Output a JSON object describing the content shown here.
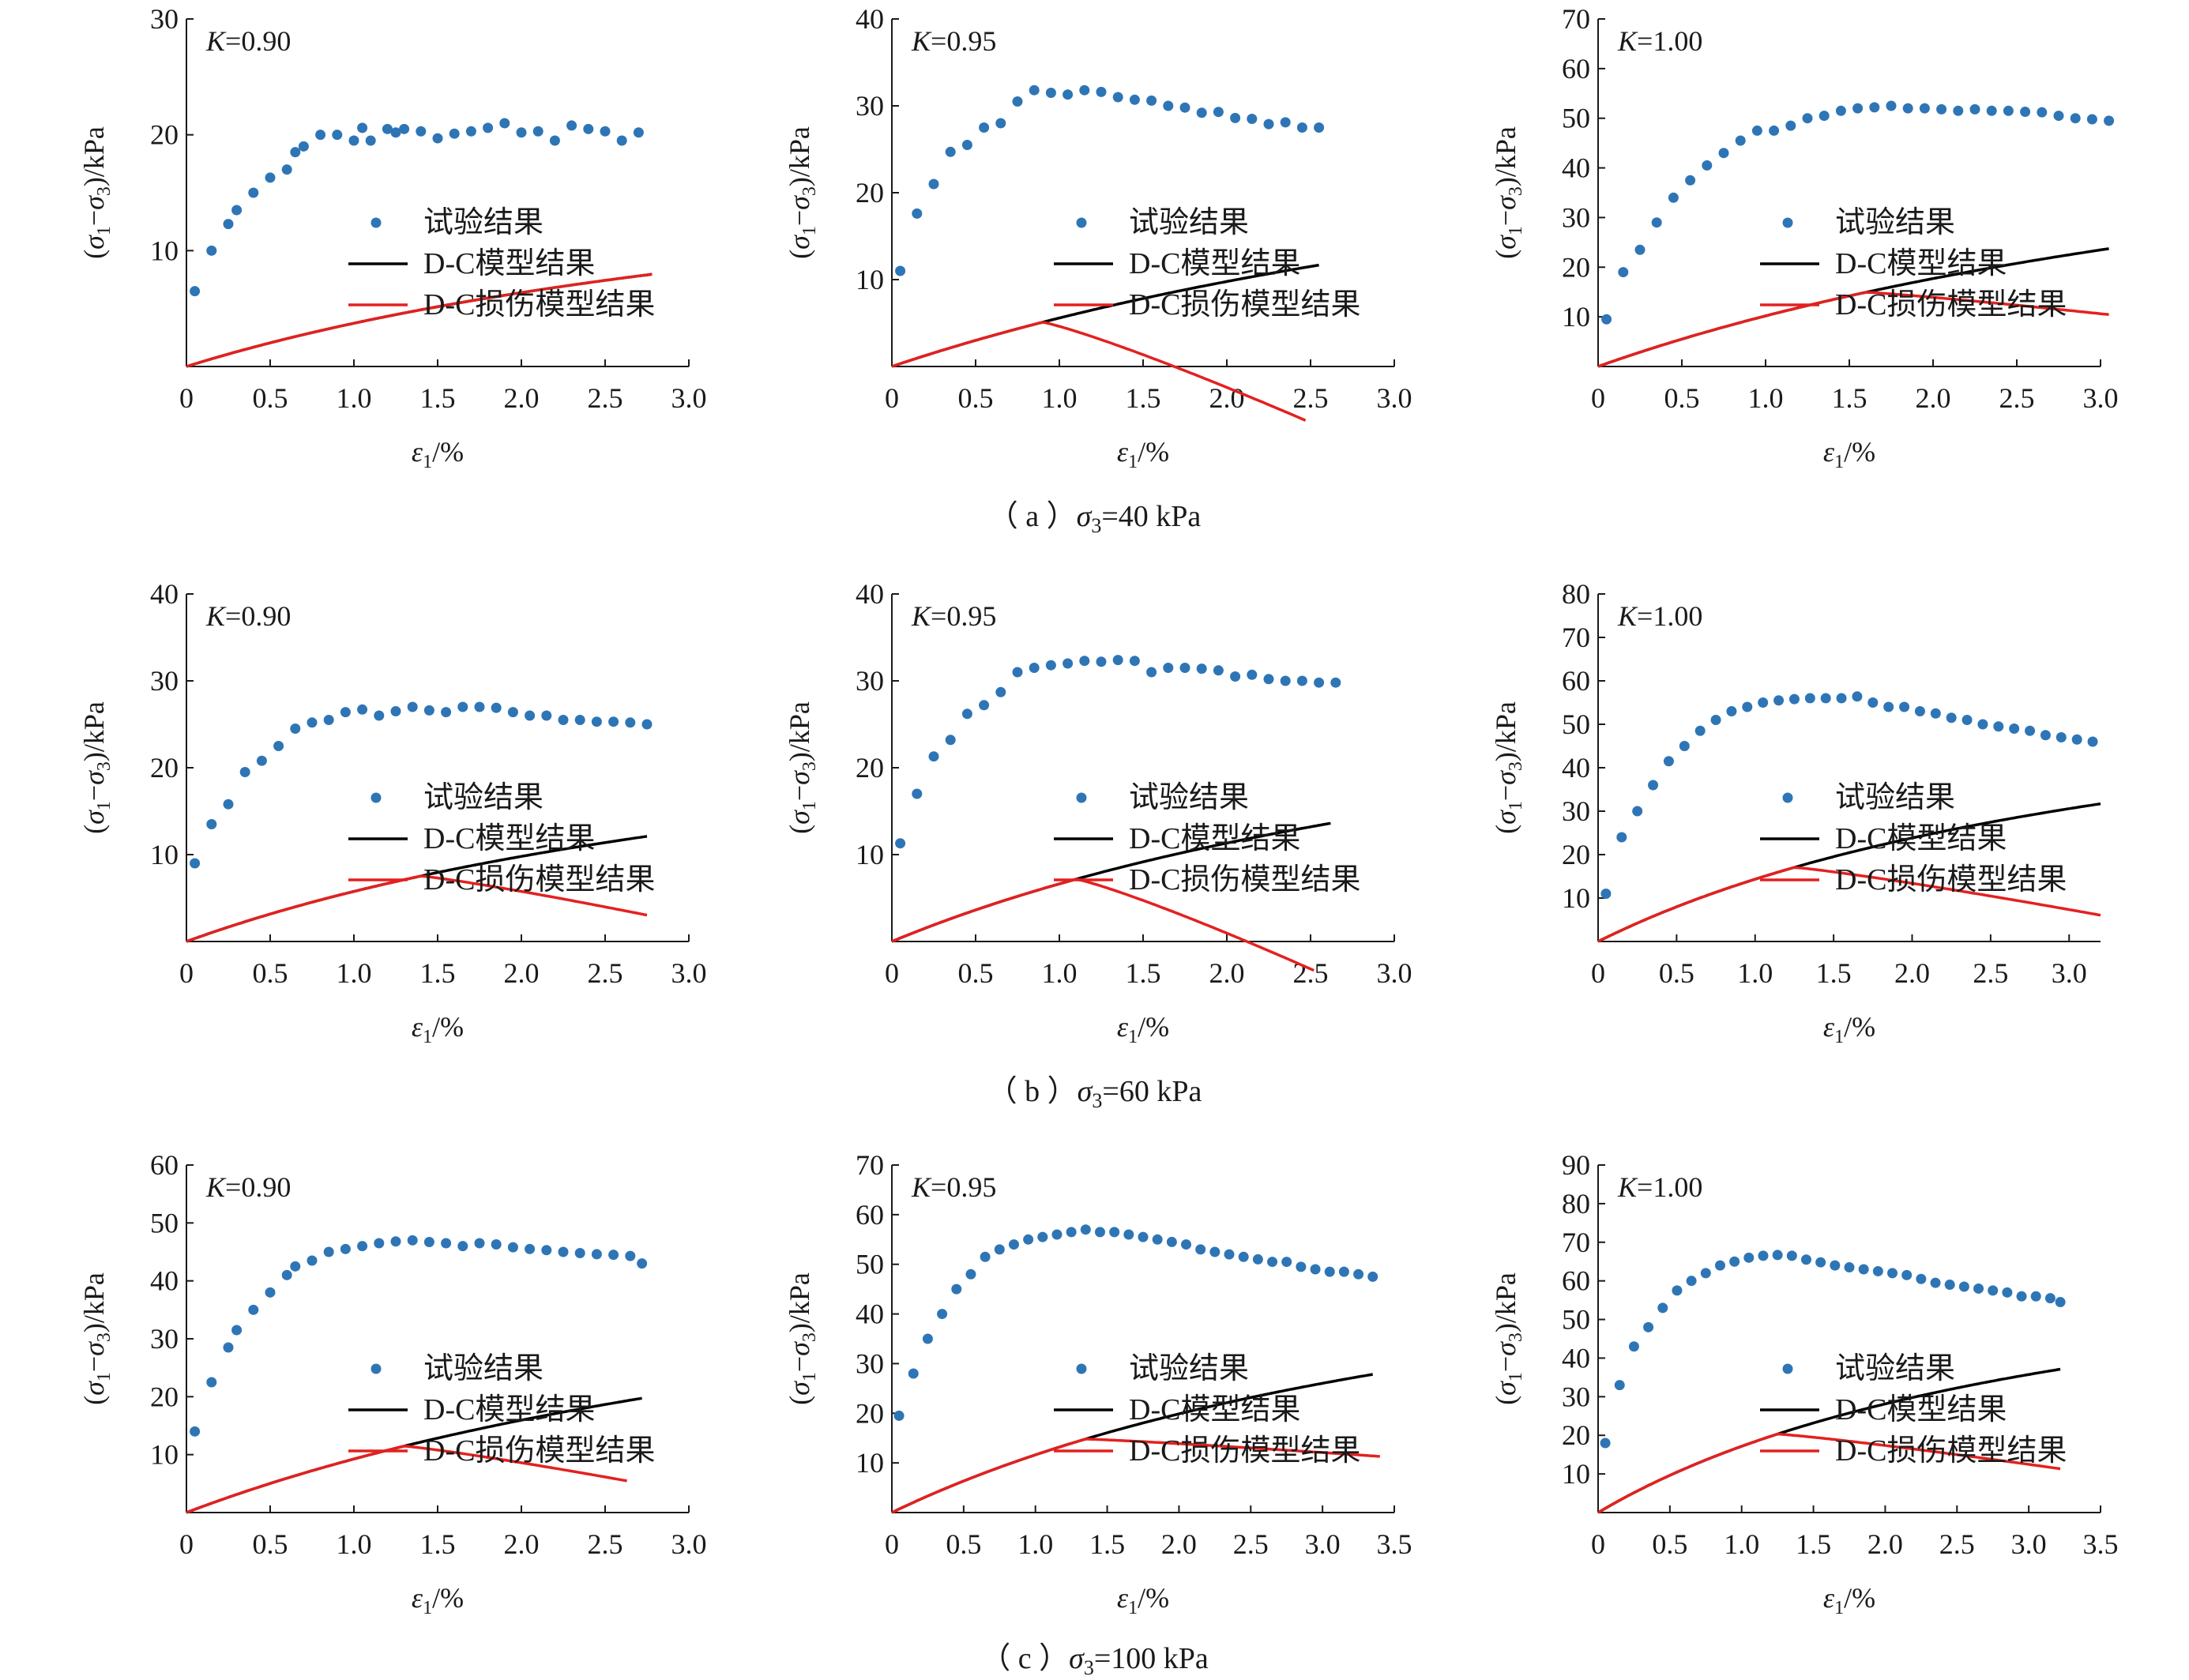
{
  "legend": {
    "experiment": "试验结果",
    "dc_model": "D-C模型结果",
    "dc_damage_model": "D-C损伤模型结果"
  },
  "axis_labels": {
    "y": "(σ1−σ3)/kPa",
    "x": "ε1/%"
  },
  "captions": [
    {
      "letter": "（ a ）",
      "sym": "σ",
      "sub": "3",
      "rest": "=40 kPa"
    },
    {
      "letter": "（ b ）",
      "sym": "σ",
      "sub": "3",
      "rest": "=60 kPa"
    },
    {
      "letter": "（ c ）",
      "sym": "σ",
      "sub": "3",
      "rest": "=100 kPa"
    }
  ],
  "colors": {
    "experiment": "#2e75b6",
    "dc_model": "#000000",
    "dc_damage_model": "#e3211f"
  },
  "chart_data": [
    {
      "type": "scatter+line",
      "row": "a",
      "k_label": "K=0.90",
      "xlim": [
        0,
        3.0
      ],
      "ylim": [
        0,
        30
      ],
      "xticks": [
        0,
        0.5,
        1.0,
        1.5,
        2.0,
        2.5,
        3.0
      ],
      "yticks": [
        10,
        20,
        30
      ],
      "xtick_labels": [
        "0",
        "0.5",
        "1.0",
        "1.5",
        "2.0",
        "2.5",
        "3.0"
      ],
      "experiment": {
        "x": [
          0.05,
          0.15,
          0.25,
          0.3,
          0.4,
          0.5,
          0.6,
          0.65,
          0.7,
          0.8,
          0.9,
          1.0,
          1.05,
          1.1,
          1.2,
          1.25,
          1.3,
          1.4,
          1.5,
          1.6,
          1.7,
          1.8,
          1.9,
          2.0,
          2.1,
          2.2,
          2.3,
          2.4,
          2.5,
          2.6,
          2.7
        ],
        "y": [
          6.5,
          10,
          12.3,
          13.5,
          15,
          16.3,
          17,
          18.5,
          19,
          20,
          20,
          19.5,
          20.6,
          19.5,
          20.5,
          20.2,
          20.5,
          20.3,
          19.7,
          20.1,
          20.3,
          20.6,
          21,
          20.2,
          20.3,
          19.5,
          20.8,
          20.5,
          20.3,
          19.5,
          20.2
        ]
      },
      "dc_model": {
        "E": 4.5,
        "q": 21.9,
        "xmax": 2.78
      },
      "dc_damage_model": {
        "E": 4.5,
        "q": 21.9,
        "xmax": 2.78,
        "peak": 3.0,
        "drop": 0
      }
    },
    {
      "type": "scatter+line",
      "row": "a",
      "k_label": "K=0.95",
      "xlim": [
        0,
        3.0
      ],
      "ylim": [
        0,
        40
      ],
      "xticks": [
        0,
        0.5,
        1.0,
        1.5,
        2.0,
        2.5,
        3.0
      ],
      "yticks": [
        10,
        20,
        30,
        40
      ],
      "xtick_labels": [
        "0",
        "0.5",
        "1.0",
        "1.5",
        "2.0",
        "2.5",
        "3.0"
      ],
      "experiment": {
        "x": [
          0.05,
          0.15,
          0.25,
          0.35,
          0.45,
          0.55,
          0.65,
          0.75,
          0.85,
          0.95,
          1.05,
          1.15,
          1.25,
          1.35,
          1.45,
          1.55,
          1.65,
          1.75,
          1.85,
          1.95,
          2.05,
          2.15,
          2.25,
          2.35,
          2.45,
          2.55
        ],
        "y": [
          11,
          17.6,
          21,
          24.7,
          25.5,
          27.5,
          28,
          30.5,
          31.8,
          31.5,
          31.3,
          31.8,
          31.6,
          31,
          30.7,
          30.6,
          30,
          29.8,
          29.2,
          29.3,
          28.6,
          28.5,
          27.9,
          28.1,
          27.5,
          27.5
        ]
      },
      "dc_model": {
        "E": 6.5,
        "q": 39.5,
        "xmax": 2.55
      },
      "dc_damage_model": {
        "E": 6.5,
        "q": 39.5,
        "xmax": 2.47,
        "peak": 0.9,
        "drop": 11.3
      }
    },
    {
      "type": "scatter+line",
      "row": "a",
      "k_label": "K=1.00",
      "xlim": [
        0,
        3.0
      ],
      "ylim": [
        0,
        70
      ],
      "xticks": [
        0,
        0.5,
        1.0,
        1.5,
        2.0,
        2.5,
        3.0
      ],
      "yticks": [
        10,
        20,
        30,
        40,
        50,
        60,
        70
      ],
      "xtick_labels": [
        "0",
        "0.5",
        "1.0",
        "1.5",
        "2.0",
        "2.5",
        "3.0"
      ],
      "experiment": {
        "x": [
          0.05,
          0.15,
          0.25,
          0.35,
          0.45,
          0.55,
          0.65,
          0.75,
          0.85,
          0.95,
          1.05,
          1.15,
          1.25,
          1.35,
          1.45,
          1.55,
          1.65,
          1.75,
          1.85,
          1.95,
          2.05,
          2.15,
          2.25,
          2.35,
          2.45,
          2.55,
          2.65,
          2.75,
          2.85,
          2.95,
          3.05
        ],
        "y": [
          9.5,
          19,
          23.5,
          29,
          34,
          37.5,
          40.5,
          43,
          45.5,
          47.5,
          47.5,
          48.5,
          50,
          50.5,
          51.5,
          52,
          52.2,
          52.5,
          52,
          52,
          51.8,
          51.5,
          51.8,
          51.5,
          51.5,
          51.3,
          51.2,
          50.5,
          50,
          49.8,
          49.5
        ]
      },
      "dc_model": {
        "E": 12,
        "q": 67.5,
        "xmax": 3.05
      },
      "dc_damage_model": {
        "E": 12,
        "q": 67.5,
        "xmax": 3.05,
        "peak": 1.6,
        "drop": 4.5
      }
    },
    {
      "type": "scatter+line",
      "row": "b",
      "k_label": "K=0.90",
      "xlim": [
        0,
        3.0
      ],
      "ylim": [
        0,
        40
      ],
      "xticks": [
        0,
        0.5,
        1.0,
        1.5,
        2.0,
        2.5,
        3.0
      ],
      "yticks": [
        10,
        20,
        30,
        40
      ],
      "xtick_labels": [
        "0",
        "0.5",
        "1.0",
        "1.5",
        "2.0",
        "2.5",
        "3.0"
      ],
      "experiment": {
        "x": [
          0.05,
          0.15,
          0.25,
          0.35,
          0.45,
          0.55,
          0.65,
          0.75,
          0.85,
          0.95,
          1.05,
          1.15,
          1.25,
          1.35,
          1.45,
          1.55,
          1.65,
          1.75,
          1.85,
          1.95,
          2.05,
          2.15,
          2.25,
          2.35,
          2.45,
          2.55,
          2.65,
          2.75
        ],
        "y": [
          9,
          13.5,
          15.8,
          19.5,
          20.8,
          22.5,
          24.5,
          25.2,
          25.5,
          26.4,
          26.7,
          26,
          26.5,
          27,
          26.6,
          26.4,
          27,
          27,
          26.9,
          26.4,
          26,
          26,
          25.5,
          25.5,
          25.3,
          25.3,
          25.2,
          25
        ]
      },
      "dc_model": {
        "E": 7,
        "q": 32.6,
        "xmax": 2.75
      },
      "dc_damage_model": {
        "E": 7,
        "q": 32.6,
        "xmax": 2.75,
        "peak": 1.4,
        "drop": 4.5
      }
    },
    {
      "type": "scatter+line",
      "row": "b",
      "k_label": "K=0.95",
      "xlim": [
        0,
        3.0
      ],
      "ylim": [
        0,
        40
      ],
      "xticks": [
        0,
        0.5,
        1.0,
        1.5,
        2.0,
        2.5,
        3.0
      ],
      "yticks": [
        10,
        20,
        30,
        40
      ],
      "xtick_labels": [
        "0",
        "0.5",
        "1.0",
        "1.5",
        "2.0",
        "2.5",
        "3.0"
      ],
      "experiment": {
        "x": [
          0.05,
          0.15,
          0.25,
          0.35,
          0.45,
          0.55,
          0.65,
          0.75,
          0.85,
          0.95,
          1.05,
          1.15,
          1.25,
          1.35,
          1.45,
          1.55,
          1.65,
          1.75,
          1.85,
          1.95,
          2.05,
          2.15,
          2.25,
          2.35,
          2.45,
          2.55,
          2.65
        ],
        "y": [
          11.3,
          17,
          21.3,
          23.2,
          26.2,
          27.2,
          28.7,
          31,
          31.5,
          31.8,
          32,
          32.3,
          32.2,
          32.4,
          32.3,
          31,
          31.5,
          31.5,
          31.4,
          31.2,
          30.5,
          30.7,
          30.2,
          30,
          30,
          29.8,
          29.8
        ]
      },
      "dc_model": {
        "E": 8,
        "q": 38.8,
        "xmax": 2.62
      },
      "dc_damage_model": {
        "E": 8,
        "q": 38.8,
        "xmax": 2.52,
        "peak": 1.1,
        "drop": 10.5
      }
    },
    {
      "type": "scatter+line",
      "row": "b",
      "k_label": "K=1.00",
      "xlim": [
        0,
        3.2
      ],
      "ylim": [
        0,
        80
      ],
      "xticks": [
        0,
        0.5,
        1.0,
        1.5,
        2.0,
        2.5,
        3.0
      ],
      "yticks": [
        10,
        20,
        30,
        40,
        50,
        60,
        70,
        80
      ],
      "xtick_labels": [
        "0",
        "0.5",
        "1.0",
        "1.5",
        "2.0",
        "2.5",
        "3.0"
      ],
      "experiment": {
        "x": [
          0.05,
          0.15,
          0.25,
          0.35,
          0.45,
          0.55,
          0.65,
          0.75,
          0.85,
          0.95,
          1.05,
          1.15,
          1.25,
          1.35,
          1.45,
          1.55,
          1.65,
          1.75,
          1.85,
          1.95,
          2.05,
          2.15,
          2.25,
          2.35,
          2.45,
          2.55,
          2.65,
          2.75,
          2.85,
          2.95,
          3.05,
          3.15
        ],
        "y": [
          11,
          24,
          30,
          36,
          41.5,
          45,
          48.5,
          51,
          53,
          54,
          55,
          55.5,
          55.8,
          56,
          56,
          56,
          56.4,
          55,
          54,
          54,
          53,
          52.5,
          51.5,
          51,
          50,
          49.5,
          49,
          48.5,
          47.5,
          47,
          46.5,
          46
        ]
      },
      "dc_model": {
        "E": 18,
        "q": 70.5,
        "xmax": 3.2
      },
      "dc_damage_model": {
        "E": 18,
        "q": 70.5,
        "xmax": 3.2,
        "peak": 1.25,
        "drop": 11
      }
    },
    {
      "type": "scatter+line",
      "row": "c",
      "k_label": "K=0.90",
      "xlim": [
        0,
        3.0
      ],
      "ylim": [
        0,
        60
      ],
      "xticks": [
        0,
        0.5,
        1.0,
        1.5,
        2.0,
        2.5,
        3.0
      ],
      "yticks": [
        10,
        20,
        30,
        40,
        50,
        60
      ],
      "xtick_labels": [
        "0",
        "0.5",
        "1.0",
        "1.5",
        "2.0",
        "2.5",
        "3.0"
      ],
      "experiment": {
        "x": [
          0.05,
          0.15,
          0.25,
          0.3,
          0.4,
          0.5,
          0.6,
          0.65,
          0.75,
          0.85,
          0.95,
          1.05,
          1.15,
          1.25,
          1.35,
          1.45,
          1.55,
          1.65,
          1.75,
          1.85,
          1.95,
          2.05,
          2.15,
          2.25,
          2.35,
          2.45,
          2.55,
          2.65,
          2.72
        ],
        "y": [
          14,
          22.5,
          28.5,
          31.5,
          35,
          38,
          41,
          42.5,
          43.5,
          45,
          45.5,
          46,
          46.5,
          46.8,
          47,
          46.7,
          46.5,
          46,
          46.5,
          46.3,
          45.8,
          45.5,
          45.3,
          45,
          44.8,
          44.6,
          44.5,
          44.3,
          43
        ]
      },
      "dc_model": {
        "E": 11,
        "q": 58,
        "xmax": 2.72
      },
      "dc_damage_model": {
        "E": 11,
        "q": 58,
        "xmax": 2.63,
        "peak": 1.3,
        "drop": 6
      }
    },
    {
      "type": "scatter+line",
      "row": "c",
      "k_label": "K=0.95",
      "xlim": [
        0,
        3.5
      ],
      "ylim": [
        0,
        70
      ],
      "xticks": [
        0,
        0.5,
        1.0,
        1.5,
        2.0,
        2.5,
        3.0,
        3.5
      ],
      "yticks": [
        10,
        20,
        30,
        40,
        50,
        60,
        70
      ],
      "xtick_labels": [
        "0",
        "0.5",
        "1.0",
        "1.5",
        "2.0",
        "2.5",
        "3.0",
        "3.5"
      ],
      "experiment": {
        "x": [
          0.05,
          0.15,
          0.25,
          0.35,
          0.45,
          0.55,
          0.65,
          0.75,
          0.85,
          0.95,
          1.05,
          1.15,
          1.25,
          1.35,
          1.45,
          1.55,
          1.65,
          1.75,
          1.85,
          1.95,
          2.05,
          2.15,
          2.25,
          2.35,
          2.45,
          2.55,
          2.65,
          2.75,
          2.85,
          2.95,
          3.05,
          3.15,
          3.25,
          3.35
        ],
        "y": [
          19.5,
          28,
          35,
          40,
          45,
          48,
          51.5,
          53,
          54,
          55,
          55.5,
          56,
          56.5,
          57,
          56.5,
          56.5,
          56,
          55.5,
          55,
          54.5,
          54,
          53,
          52.5,
          52,
          51.5,
          51,
          50.5,
          50.5,
          49.5,
          49,
          48.5,
          48.5,
          48,
          47.5
        ]
      },
      "dc_model": {
        "E": 14,
        "q": 68.5,
        "xmax": 3.35
      },
      "dc_damage_model": {
        "E": 14,
        "q": 68.5,
        "xmax": 3.4,
        "peak": 1.35,
        "drop": 3.5
      }
    },
    {
      "type": "scatter+line",
      "row": "c",
      "k_label": "K=1.00",
      "xlim": [
        0,
        3.5
      ],
      "ylim": [
        0,
        90
      ],
      "xticks": [
        0,
        0.5,
        1.0,
        1.5,
        2.0,
        2.5,
        3.0,
        3.5
      ],
      "yticks": [
        10,
        20,
        30,
        40,
        50,
        60,
        70,
        80,
        90
      ],
      "xtick_labels": [
        "0",
        "0.5",
        "1.0",
        "1.5",
        "2.0",
        "2.5",
        "3.0",
        "3.5"
      ],
      "experiment": {
        "x": [
          0.05,
          0.15,
          0.25,
          0.35,
          0.45,
          0.55,
          0.65,
          0.75,
          0.85,
          0.95,
          1.05,
          1.15,
          1.25,
          1.35,
          1.45,
          1.55,
          1.65,
          1.75,
          1.85,
          1.95,
          2.05,
          2.15,
          2.25,
          2.35,
          2.45,
          2.55,
          2.65,
          2.75,
          2.85,
          2.95,
          3.05,
          3.15,
          3.22
        ],
        "y": [
          18,
          33,
          43,
          48,
          53,
          57.5,
          60,
          62,
          64,
          65,
          66,
          66.5,
          66.7,
          66.5,
          65.5,
          64.8,
          64,
          63.5,
          63,
          62.5,
          62,
          61.5,
          60.5,
          59.5,
          59,
          58.5,
          58,
          57.5,
          57,
          56,
          56,
          55.5,
          54.5
        ]
      },
      "dc_model": {
        "E": 22,
        "q": 78,
        "xmax": 3.22
      },
      "dc_damage_model": {
        "E": 22,
        "q": 78,
        "xmax": 3.22,
        "peak": 1.25,
        "drop": 9
      }
    }
  ]
}
